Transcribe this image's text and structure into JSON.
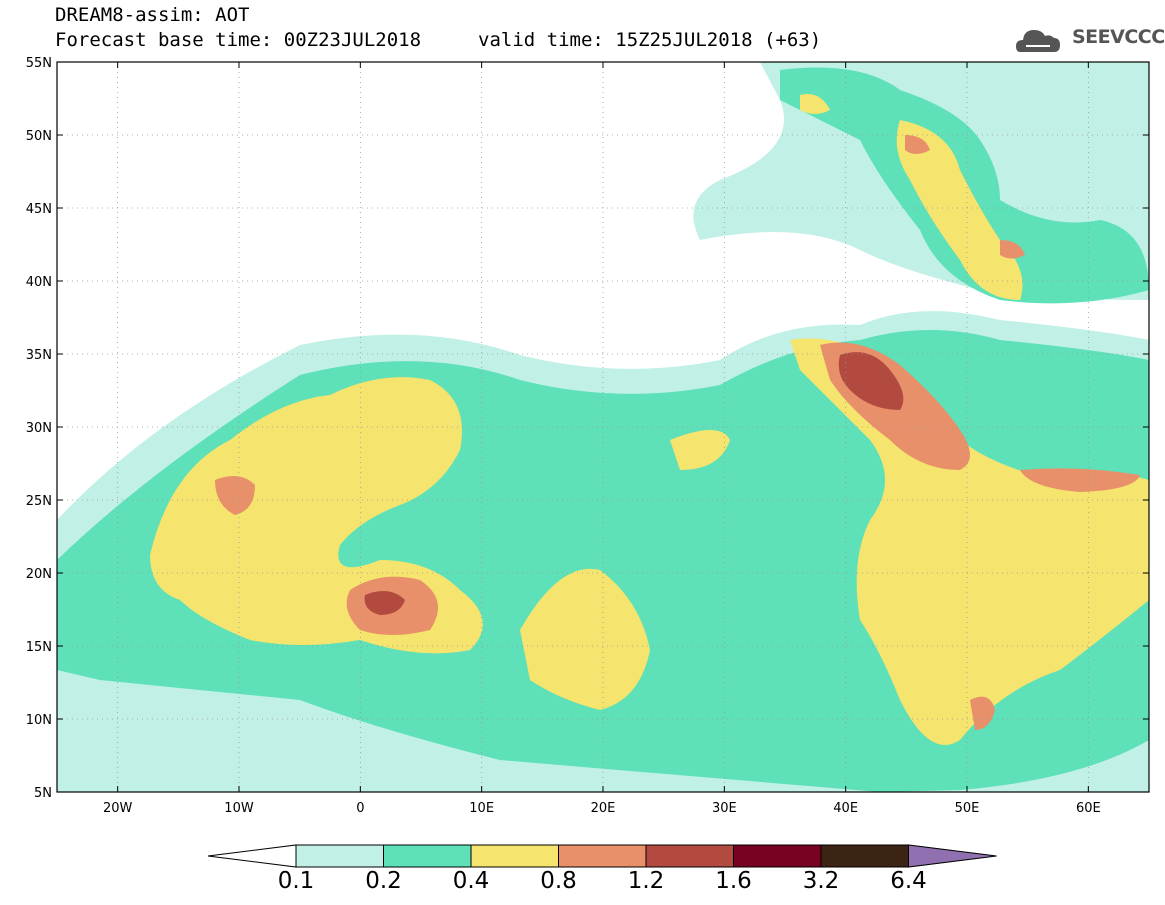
{
  "header": {
    "title": "DREAM8-assim: AOT",
    "base_time": "Forecast base time: 00Z23JUL2018",
    "valid_time": "valid time: 15Z25JUL2018 (+63)"
  },
  "logo": {
    "text": "SEEVCCC",
    "icon": "cloud-icon"
  },
  "map": {
    "lat_labels": [
      "55N",
      "50N",
      "45N",
      "40N",
      "35N",
      "30N",
      "25N",
      "20N",
      "15N",
      "10N",
      "5N"
    ],
    "lon_labels": [
      "20W",
      "10W",
      "0",
      "10E",
      "20E",
      "30E",
      "40E",
      "50E",
      "60E"
    ],
    "lat_range": [
      5,
      55
    ],
    "lon_range": [
      -25,
      65
    ],
    "grid": "dotted"
  },
  "colorbar": {
    "levels": [
      "0.1",
      "0.2",
      "0.4",
      "0.8",
      "1.2",
      "1.6",
      "3.2",
      "6.4"
    ],
    "colors": [
      "#c0f0e6",
      "#5ee0b8",
      "#f5e46e",
      "#e8906a",
      "#b24a40",
      "#780020",
      "#3c2414",
      "#9070b0"
    ],
    "under_color": "#ffffff",
    "over_color": "#9070b0"
  }
}
